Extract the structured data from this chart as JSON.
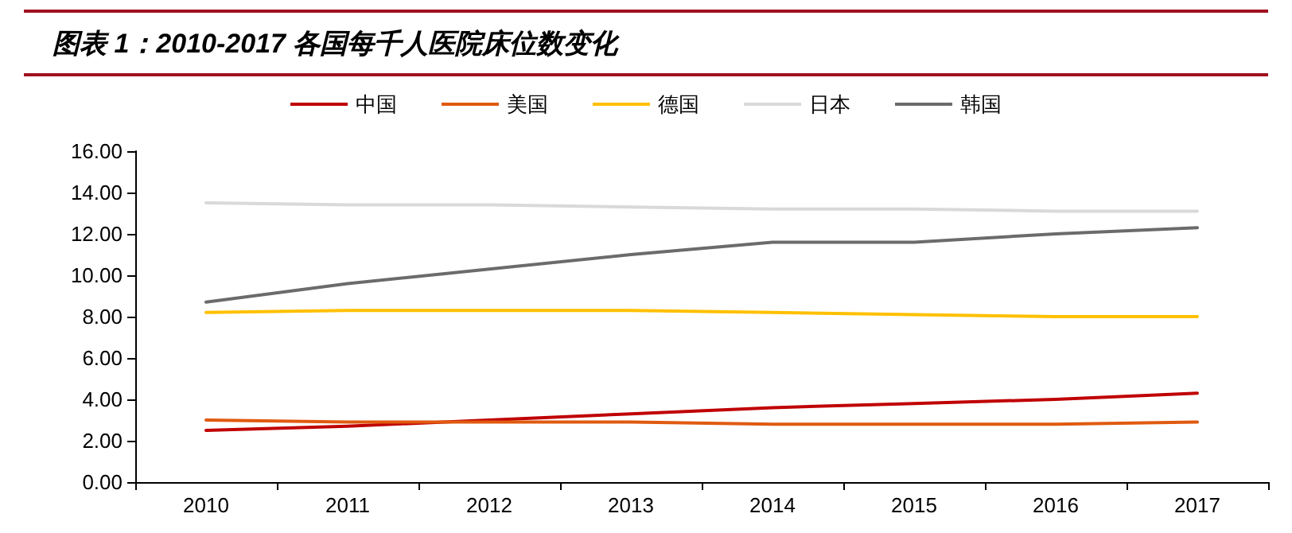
{
  "chart_data": {
    "type": "line",
    "title": "图表 1：2010-2017 各国每千人医院床位数变化",
    "categories": [
      "2010",
      "2011",
      "2012",
      "2013",
      "2014",
      "2015",
      "2016",
      "2017"
    ],
    "series": [
      {
        "name": "中国",
        "color": "#c00000",
        "values": [
          2.5,
          2.7,
          3.0,
          3.3,
          3.6,
          3.8,
          4.0,
          4.3
        ]
      },
      {
        "name": "美国",
        "color": "#e05a10",
        "values": [
          3.0,
          2.9,
          2.9,
          2.9,
          2.8,
          2.8,
          2.8,
          2.9
        ]
      },
      {
        "name": "德国",
        "color": "#ffc000",
        "values": [
          8.2,
          8.3,
          8.3,
          8.3,
          8.2,
          8.1,
          8.0,
          8.0
        ]
      },
      {
        "name": "日本",
        "color": "#d9d9d9",
        "values": [
          13.5,
          13.4,
          13.4,
          13.3,
          13.2,
          13.2,
          13.1,
          13.1
        ]
      },
      {
        "name": "韩国",
        "color": "#6b6b6b",
        "values": [
          8.7,
          9.6,
          10.3,
          11.0,
          11.6,
          11.6,
          12.0,
          12.3
        ]
      }
    ],
    "ylim": [
      0,
      16
    ],
    "yticks": [
      {
        "value": 0,
        "label": "0.00"
      },
      {
        "value": 2,
        "label": "2.00"
      },
      {
        "value": 4,
        "label": "4.00"
      },
      {
        "value": 6,
        "label": "6.00"
      },
      {
        "value": 8,
        "label": "8.00"
      },
      {
        "value": 10,
        "label": "10.00"
      },
      {
        "value": 12,
        "label": "12.00"
      },
      {
        "value": 14,
        "label": "14.00"
      },
      {
        "value": 16,
        "label": "16.00"
      }
    ],
    "grid": false,
    "legend": "top",
    "marker": "none",
    "line_style": "solid"
  }
}
